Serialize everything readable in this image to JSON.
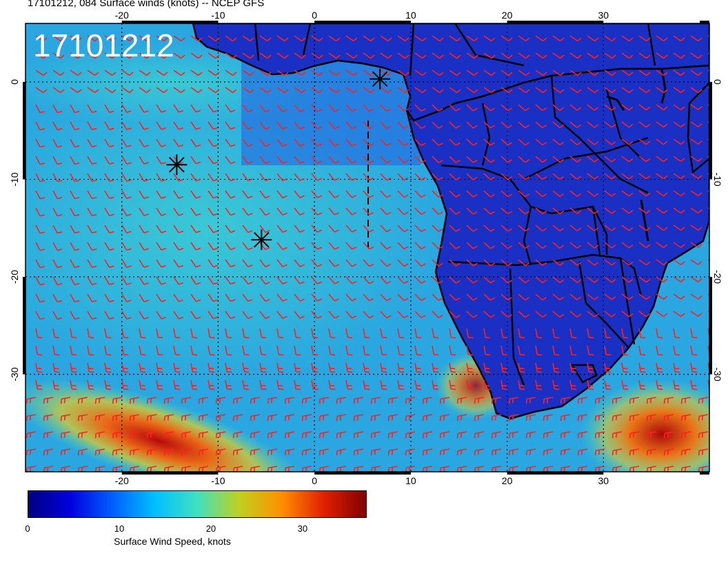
{
  "header": {
    "title": "17101212, 084 Surface winds (knots) -- NCEP GFS",
    "stamp": "17101212"
  },
  "map": {
    "lon_range": [
      -30,
      41
    ],
    "lat_range": [
      -40,
      6
    ],
    "x_ticks": [
      -20,
      -10,
      0,
      10,
      20,
      30
    ],
    "y_ticks": [
      0,
      -10,
      -20,
      -30
    ],
    "markers": [
      {
        "lon": 6.8,
        "lat": 0.3
      },
      {
        "lon": -14.3,
        "lat": -8.5
      },
      {
        "lon": -5.5,
        "lat": -16.2
      }
    ],
    "colors": {
      "barb": "#ff2020",
      "land_base": "#1a2fc4",
      "ocean_base": "#2aa6e0"
    }
  },
  "colorbar": {
    "label": "Surface Wind Speed, knots",
    "ticks": [
      "0",
      "10",
      "20",
      "30"
    ],
    "tick_values": [
      0,
      10,
      20,
      30
    ],
    "range": [
      0,
      37
    ],
    "stops": [
      "#00007f",
      "#0000e0",
      "#0060ff",
      "#00c0ff",
      "#40e0c0",
      "#c0d020",
      "#ff9000",
      "#e02000",
      "#800000"
    ]
  }
}
